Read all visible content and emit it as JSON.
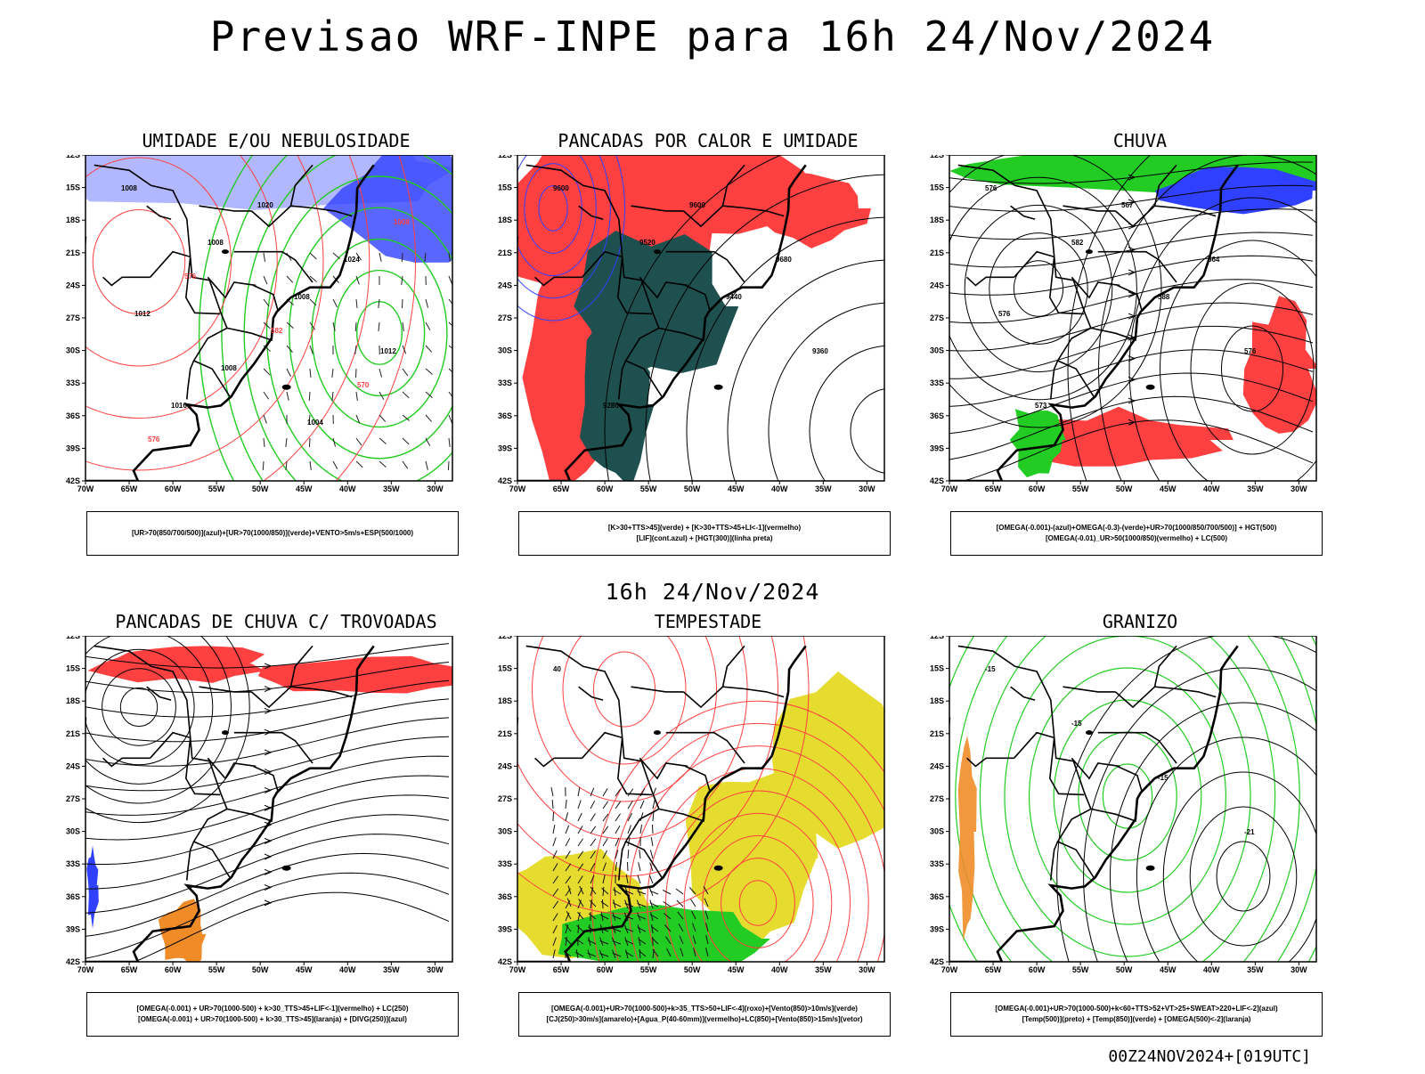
{
  "title": "Previsao WRF-INPE  para 16h 24/Nov/2024",
  "mid_title": "16h 24/Nov/2024",
  "footer": "00Z24NOV2024+[019UTC]",
  "axes": {
    "lat_labels": [
      "12S",
      "15S",
      "18S",
      "21S",
      "24S",
      "27S",
      "30S",
      "33S",
      "36S",
      "39S",
      "42S"
    ],
    "lon_labels": [
      "70W",
      "65W",
      "60W",
      "55W",
      "50W",
      "45W",
      "40W",
      "35W",
      "30W"
    ]
  },
  "colors": {
    "red": "#ff4040",
    "green": "#22cc22",
    "blue": "#3040ff",
    "lavender": "#aab0ff",
    "darkteal": "#1e5050",
    "yellow": "#e6dc30",
    "orange": "#f08c28"
  },
  "panels": [
    {
      "title": "UMIDADE E/OU NEBULOSIDADE",
      "legend": [
        "[UR>70(850/700/500)](azul)+[UR>70(1000/850)](verde)+VENTO>5m/s+ESP(500/1000)"
      ],
      "contour_labels": [
        "1008",
        "1008",
        "1008",
        "1012",
        "1016",
        "1020",
        "1024",
        "1012",
        "1008",
        "1004",
        "1008",
        "576",
        "582",
        "570",
        "576"
      ]
    },
    {
      "title": "PANCADAS POR CALOR E UMIDADE",
      "legend": [
        "[K>30+TTS>45](verde) + [K>30+TTS>45+LI<-1](vermelho)",
        "[LIF](cont.azul) + [HGT(300)](linha preta)"
      ],
      "contour_labels": [
        "9600",
        "9520",
        "9440",
        "9360",
        "9280",
        "9600",
        "9680"
      ]
    },
    {
      "title": "CHUVA",
      "legend": [
        "[OMEGA(-0.001)-(azul)+OMEGA(-0.3)-(verde)+UR>70(1000/850/700/500)] + HGT(500)",
        "[OMEGA(-0.01)_UR>50(1000/850)(vermelho) + LC(500)"
      ],
      "contour_labels": [
        "576",
        "582",
        "588",
        "576",
        "573",
        "567",
        "564",
        "576"
      ]
    },
    {
      "title": "PANCADAS DE CHUVA C/ TROVOADAS",
      "legend": [
        "[OMEGA(-0.001) + UR>70(1000-500) + k>30_TTS>45+LIF<-1](vermelho) + LC(250)",
        "[OMEGA(-0.001) + UR>70(1000-500) + k>30_TTS>45](laranja) + [DIVG(250)](azul)"
      ],
      "contour_labels": []
    },
    {
      "title": "TEMPESTADE",
      "legend": [
        "[OMEGA(-0.001)+UR>70(1000-500)+k>35_TTS>50+LIF<-4](roxo)+[Vento(850)>10m/s](verde)",
        "[CJ(250)>30m/s](amarelo)+[Agua_P(40-60mm)](vermelho)+LC(850)+[Vento(850)>15m/s](vetor)"
      ],
      "contour_labels": [
        "40"
      ]
    },
    {
      "title": "GRANIZO",
      "legend": [
        "[OMEGA(-0.001)+UR>70(1000-500)+k<60+TTS>52+VT>25+SWEAT>220+LIF<-2](azul)",
        "[Temp(500)](preto) + [Temp(850)](verde) + [OMEGA(500)<-2](laranja)"
      ],
      "contour_labels": [
        "-15",
        "-15",
        "-15",
        "-21"
      ]
    }
  ]
}
